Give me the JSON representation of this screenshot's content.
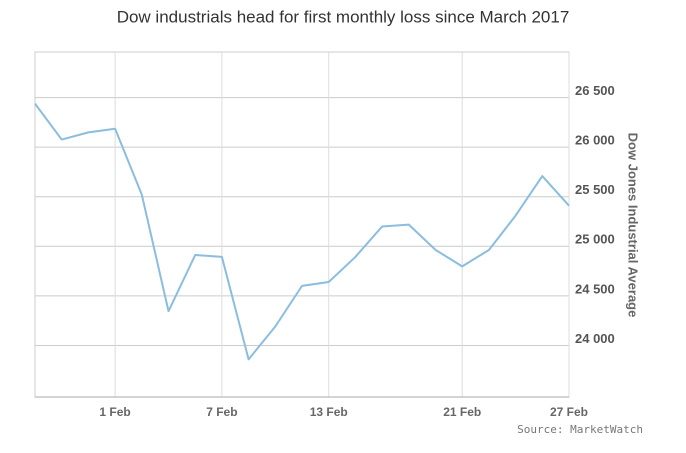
{
  "chart_data": {
    "type": "line",
    "title": "Dow industrials head for first monthly loss since March 2017",
    "y_axis_label": "Dow Jones Industrial Average",
    "source": "Source: MarketWatch",
    "categories": [
      null,
      null,
      null,
      "1 Feb",
      null,
      null,
      null,
      "7 Feb",
      null,
      null,
      null,
      "13 Feb",
      null,
      null,
      null,
      null,
      "21 Feb",
      null,
      null,
      null,
      "27 Feb"
    ],
    "series": [
      {
        "name": "Dow Jones Industrial Average",
        "color": "#8bbde0",
        "values": [
          26439,
          26077,
          26149,
          26186,
          25521,
          24346,
          24912,
          24893,
          23860,
          24191,
          24601,
          24640,
          24893,
          25200,
          25219,
          24964,
          24798,
          24963,
          25310,
          25709,
          25410
        ]
      }
    ],
    "ylim": [
      23480,
      26960
    ],
    "yticks": [
      {
        "value": 24000,
        "label": "24 000"
      },
      {
        "value": 24500,
        "label": "24 500"
      },
      {
        "value": 25000,
        "label": "25 000"
      },
      {
        "value": 25500,
        "label": "25 500"
      },
      {
        "value": 26000,
        "label": "26 000"
      },
      {
        "value": 26500,
        "label": "26 500"
      }
    ],
    "grid": true
  }
}
